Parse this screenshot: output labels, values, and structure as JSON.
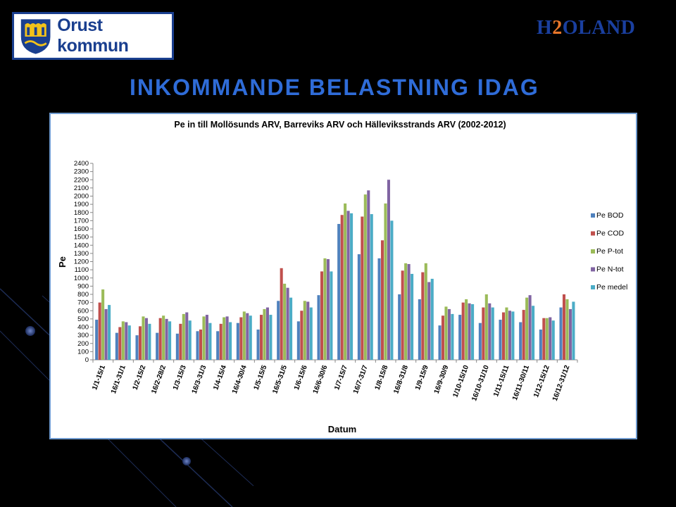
{
  "logos": {
    "left_text": "Orust kommun",
    "right_h": "H",
    "right_two": "2",
    "right_rest": "OLAND"
  },
  "slide_title": "INKOMMANDE BELASTNING IDAG",
  "colors": {
    "background": "#000000",
    "title": "#2f6cd8",
    "logo_blue": "#1a3f8f",
    "logo_orange": "#e8762a"
  },
  "chart_data": {
    "type": "bar",
    "title": "Pe  in till Mollösunds  ARV, Barreviks  ARV och Hälleviksstrands  ARV (2002-2012)",
    "xlabel": "Datum",
    "ylabel": "Pe",
    "ylim": [
      0,
      2400
    ],
    "yticks": [
      0,
      100,
      200,
      300,
      400,
      500,
      600,
      700,
      800,
      900,
      1000,
      1100,
      1200,
      1300,
      1400,
      1500,
      1600,
      1700,
      1800,
      1900,
      2000,
      2100,
      2200,
      2300,
      2400
    ],
    "grid": false,
    "legend_position": "right",
    "categories": [
      "1/1-15/1",
      "16/1-31/1",
      "1/2-15/2",
      "16/2-28/2",
      "1/3-15/3",
      "16/3-31/3",
      "1/4-15/4",
      "16/4-30/4",
      "1/5-15/5",
      "16/5-31/5",
      "1/6-15/6",
      "16/6-30/6",
      "1/7-15/7",
      "16/7-31/7",
      "1/8-15/8",
      "16/8-31/8",
      "1/9-15/9",
      "16/9-30/9",
      "1/10-15/10",
      "16/10-31/10",
      "1/11-15/11",
      "16/11-30/11",
      "1/12-15/12",
      "16/12-31/12"
    ],
    "series": [
      {
        "name": "Pe BOD",
        "color": "#4f81bd",
        "values": [
          490,
          330,
          300,
          330,
          320,
          350,
          350,
          450,
          370,
          720,
          470,
          790,
          1660,
          1290,
          1240,
          800,
          740,
          420,
          550,
          450,
          490,
          460,
          370,
          640
        ]
      },
      {
        "name": "Pe COD",
        "color": "#c0504d",
        "values": [
          700,
          400,
          410,
          510,
          440,
          370,
          440,
          520,
          550,
          1120,
          600,
          1080,
          1770,
          1750,
          1460,
          1090,
          1070,
          540,
          700,
          640,
          580,
          610,
          510,
          800
        ]
      },
      {
        "name": "Pe P-tot",
        "color": "#9bbb59",
        "values": [
          860,
          470,
          530,
          540,
          560,
          530,
          520,
          590,
          620,
          930,
          720,
          1240,
          1910,
          2020,
          1910,
          1180,
          1180,
          650,
          740,
          800,
          640,
          760,
          510,
          740
        ]
      },
      {
        "name": "Pe N-tot",
        "color": "#8064a2",
        "values": [
          620,
          460,
          510,
          500,
          580,
          550,
          530,
          570,
          640,
          880,
          710,
          1230,
          1820,
          2070,
          2200,
          1170,
          950,
          620,
          690,
          690,
          600,
          790,
          520,
          620
        ]
      },
      {
        "name": "Pe medel",
        "color": "#4bacc6",
        "values": [
          670,
          420,
          440,
          470,
          480,
          450,
          460,
          540,
          550,
          760,
          640,
          1080,
          1790,
          1780,
          1700,
          1050,
          990,
          560,
          680,
          640,
          590,
          660,
          480,
          710
        ]
      }
    ]
  }
}
